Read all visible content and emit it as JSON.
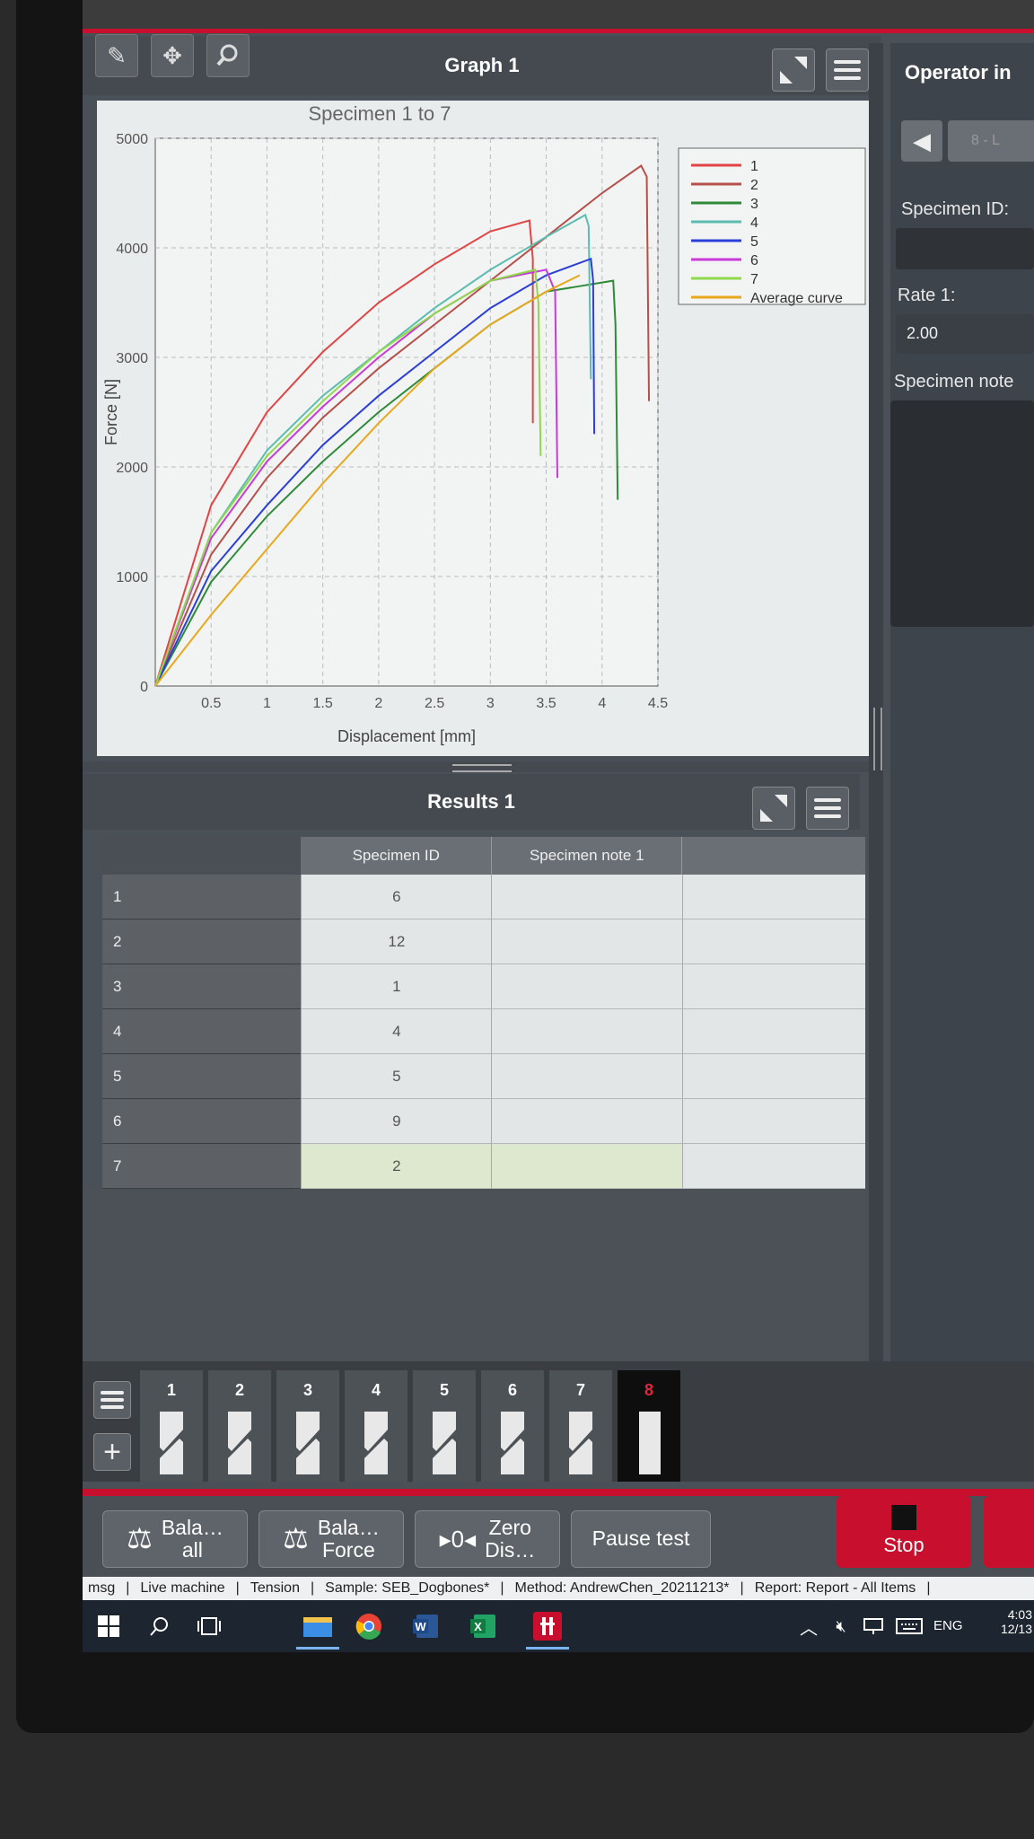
{
  "graph_panel": {
    "title": "Graph 1"
  },
  "chart_data": {
    "type": "line",
    "title": "Specimen 1 to 7",
    "xlabel": "Displacement [mm]",
    "ylabel": "Force [N]",
    "xlim": [
      0,
      4.5
    ],
    "ylim": [
      0,
      5000
    ],
    "x_ticks": [
      "0.5",
      "1",
      "1.5",
      "2",
      "2.5",
      "3",
      "3.5",
      "4",
      "4.5"
    ],
    "y_ticks": [
      "0",
      "1000",
      "2000",
      "3000",
      "4000",
      "5000"
    ],
    "grid": true,
    "legend_position": "top-right",
    "series": [
      {
        "name": "1",
        "color": "#e04545",
        "x": [
          0,
          0.5,
          1,
          1.5,
          2,
          2.5,
          3,
          3.35,
          3.38,
          3.38
        ],
        "y": [
          0,
          1650,
          2500,
          3050,
          3500,
          3850,
          4150,
          4250,
          3900,
          2400
        ]
      },
      {
        "name": "2",
        "color": "#b5504a",
        "x": [
          0,
          0.5,
          1,
          1.5,
          2,
          2.5,
          3,
          3.5,
          4,
          4.35,
          4.4,
          4.42
        ],
        "y": [
          0,
          1200,
          1900,
          2450,
          2900,
          3300,
          3700,
          4100,
          4500,
          4750,
          4650,
          2600
        ]
      },
      {
        "name": "3",
        "color": "#2f8a3a",
        "x": [
          0,
          0.5,
          1,
          1.5,
          2,
          2.5,
          3,
          3.5,
          3.8,
          4.1,
          4.12,
          4.14
        ],
        "y": [
          0,
          950,
          1550,
          2050,
          2500,
          2900,
          3300,
          3600,
          3650,
          3700,
          3300,
          1700
        ]
      },
      {
        "name": "4",
        "color": "#5cbcb0",
        "x": [
          0,
          0.5,
          1,
          1.5,
          2,
          2.5,
          3,
          3.5,
          3.85,
          3.88,
          3.9
        ],
        "y": [
          0,
          1400,
          2150,
          2650,
          3050,
          3450,
          3800,
          4100,
          4300,
          4200,
          2800
        ]
      },
      {
        "name": "5",
        "color": "#2b3fd8",
        "x": [
          0,
          0.5,
          1,
          1.5,
          2,
          2.5,
          3,
          3.5,
          3.9,
          3.92,
          3.93
        ],
        "y": [
          0,
          1050,
          1650,
          2200,
          2650,
          3050,
          3450,
          3750,
          3900,
          3700,
          2300
        ]
      },
      {
        "name": "6",
        "color": "#c83ad8",
        "x": [
          0,
          0.5,
          1,
          1.5,
          2,
          2.5,
          3,
          3.5,
          3.58,
          3.6
        ],
        "y": [
          0,
          1350,
          2050,
          2550,
          3000,
          3400,
          3700,
          3800,
          3600,
          1900
        ]
      },
      {
        "name": "7",
        "color": "#8fd84a",
        "x": [
          0,
          0.5,
          1,
          1.5,
          2,
          2.5,
          3,
          3.4,
          3.43,
          3.45
        ],
        "y": [
          0,
          1400,
          2100,
          2600,
          3050,
          3400,
          3700,
          3800,
          3500,
          2100
        ]
      },
      {
        "name": "Average curve",
        "color": "#e8a81c",
        "x": [
          0,
          0.5,
          1,
          1.5,
          2,
          2.5,
          3,
          3.5,
          3.8
        ],
        "y": [
          0,
          650,
          1250,
          1850,
          2400,
          2900,
          3300,
          3600,
          3750
        ]
      }
    ]
  },
  "results_panel": {
    "title": "Results 1",
    "columns": [
      "Specimen ID",
      "Specimen note 1"
    ],
    "rows": [
      {
        "index": "1",
        "specimen_id": "6"
      },
      {
        "index": "2",
        "specimen_id": "12"
      },
      {
        "index": "3",
        "specimen_id": "1"
      },
      {
        "index": "4",
        "specimen_id": "4"
      },
      {
        "index": "5",
        "specimen_id": "5"
      },
      {
        "index": "6",
        "specimen_id": "9"
      },
      {
        "index": "7",
        "specimen_id": "2"
      }
    ]
  },
  "operator_panel": {
    "title": "Operator in",
    "nav_value": "8 - L",
    "specimen_id_label": "Specimen ID:",
    "rate_label": "Rate 1:",
    "rate_value": "2.00",
    "specimen_note_label": "Specimen note"
  },
  "specimens": [
    "1",
    "2",
    "3",
    "4",
    "5",
    "6",
    "7",
    "8"
  ],
  "actions": {
    "balance_all": [
      "Bala…",
      "all"
    ],
    "balance_force": [
      "Bala…",
      "Force"
    ],
    "zero_symbol": "0",
    "zero_disp": [
      "Zero",
      "Dis…"
    ],
    "pause": "Pause test",
    "stop": "Stop"
  },
  "status": {
    "items": [
      "msg",
      "Live machine",
      "Tension",
      "Sample: SEB_Dogbones*",
      "Method: AndrewChen_20211213*",
      "Report: Report - All Items"
    ]
  },
  "taskbar": {
    "language": "ENG",
    "time": "4:03",
    "date": "12/13"
  }
}
